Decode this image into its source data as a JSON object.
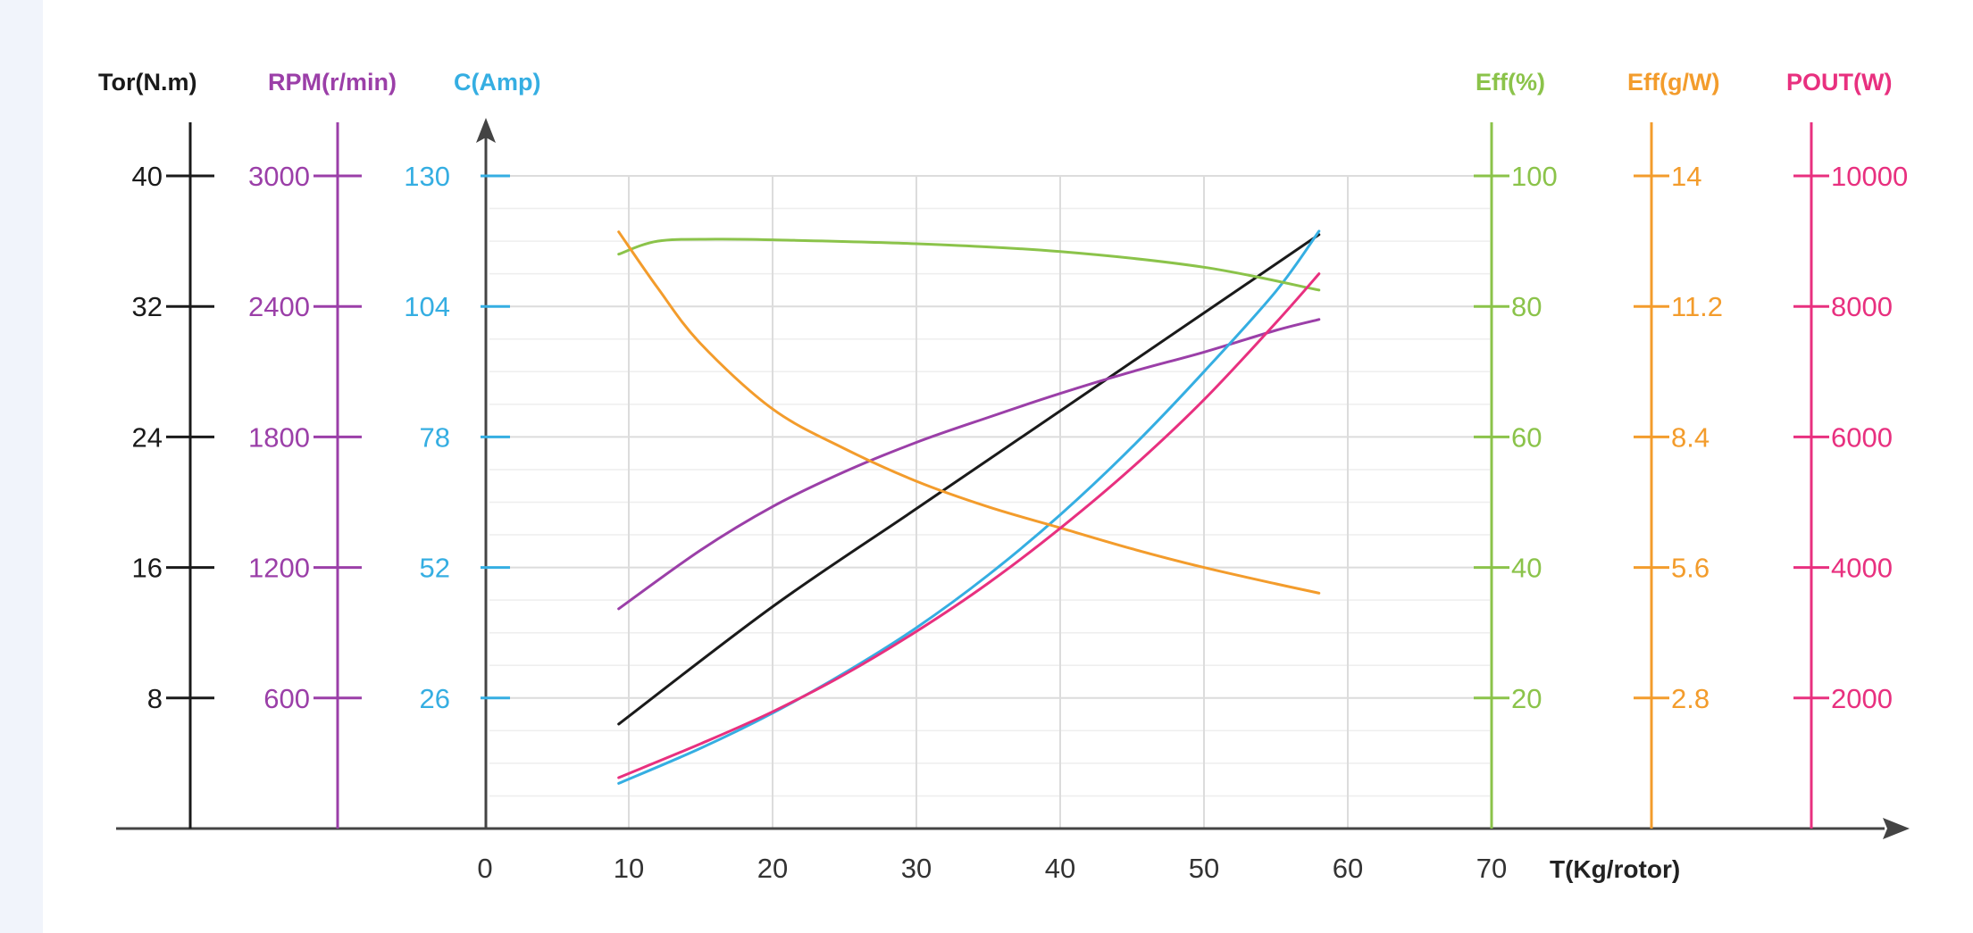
{
  "chart_data": {
    "type": "line",
    "x_axis": {
      "label": "T(Kg/rotor)",
      "ticks": [
        "0",
        "10",
        "20",
        "30",
        "40",
        "50",
        "60",
        "70"
      ],
      "range": [
        0,
        70
      ]
    },
    "y_axes": [
      {
        "id": "tor",
        "label": "Tor(N.m)",
        "color": "#1a1a1a",
        "range": [
          0,
          40
        ],
        "ticks": [
          "40",
          "32",
          "24",
          "16",
          "8"
        ],
        "tick_style": "cross-left"
      },
      {
        "id": "rpm",
        "label": "RPM(r/min)",
        "color": "#9b3fa8",
        "range": [
          0,
          3000
        ],
        "ticks": [
          "3000",
          "2400",
          "1800",
          "1200",
          "600"
        ],
        "tick_style": "cross-left"
      },
      {
        "id": "amp",
        "label": "C(Amp)",
        "color": "#35aee2",
        "range": [
          0,
          130
        ],
        "ticks": [
          "130",
          "104",
          "78",
          "52",
          "26"
        ],
        "tick_style": "right"
      },
      {
        "id": "eff_pct",
        "label": "Eff(%)",
        "color": "#8bc34a",
        "range": [
          0,
          100
        ],
        "ticks": [
          "100",
          "80",
          "60",
          "40",
          "20"
        ],
        "tick_style": "cross-right"
      },
      {
        "id": "eff_gw",
        "label": "Eff(g/W)",
        "color": "#f39c2c",
        "range": [
          0,
          14
        ],
        "ticks": [
          "14",
          "11.2",
          "8.4",
          "5.6",
          "2.8"
        ],
        "tick_style": "cross-right"
      },
      {
        "id": "pout",
        "label": "POUT(W)",
        "color": "#e8307f",
        "range": [
          0,
          10000
        ],
        "ticks": [
          "10000",
          "8000",
          "6000",
          "4000",
          "2000"
        ],
        "tick_style": "cross-right"
      }
    ],
    "grid": true,
    "series": [
      {
        "axis": "tor",
        "color": "#1a1a1a",
        "points": [
          [
            9.3,
            6.4
          ],
          [
            20,
            13.6
          ],
          [
            30,
            19.6
          ],
          [
            40,
            25.6
          ],
          [
            50,
            31.6
          ],
          [
            58,
            36.4
          ]
        ]
      },
      {
        "axis": "rpm",
        "color": "#9b3fa8",
        "points": [
          [
            9.3,
            1010
          ],
          [
            15,
            1280
          ],
          [
            20,
            1480
          ],
          [
            25,
            1640
          ],
          [
            30,
            1775
          ],
          [
            35,
            1890
          ],
          [
            40,
            2000
          ],
          [
            45,
            2100
          ],
          [
            50,
            2190
          ],
          [
            55,
            2290
          ],
          [
            58,
            2340
          ]
        ]
      },
      {
        "axis": "amp",
        "color": "#35aee2",
        "points": [
          [
            9.3,
            9
          ],
          [
            15,
            16
          ],
          [
            20,
            23
          ],
          [
            25,
            31
          ],
          [
            30,
            40
          ],
          [
            35,
            50.5
          ],
          [
            40,
            62.5
          ],
          [
            45,
            76
          ],
          [
            50,
            91
          ],
          [
            55,
            107
          ],
          [
            58,
            119
          ]
        ]
      },
      {
        "axis": "eff_pct",
        "color": "#8bc34a",
        "points": [
          [
            9.3,
            88
          ],
          [
            12,
            90
          ],
          [
            16,
            90.3
          ],
          [
            20,
            90.2
          ],
          [
            30,
            89.6
          ],
          [
            40,
            88.4
          ],
          [
            50,
            86
          ],
          [
            58,
            82.5
          ]
        ]
      },
      {
        "axis": "eff_gw",
        "color": "#f39c2c",
        "points": [
          [
            9.3,
            12.8
          ],
          [
            12,
            11.6
          ],
          [
            15,
            10.4
          ],
          [
            20,
            9.0
          ],
          [
            25,
            8.15
          ],
          [
            30,
            7.45
          ],
          [
            35,
            6.9
          ],
          [
            40,
            6.45
          ],
          [
            45,
            6.0
          ],
          [
            50,
            5.6
          ],
          [
            55,
            5.25
          ],
          [
            58,
            5.05
          ]
        ]
      },
      {
        "axis": "pout",
        "color": "#e8307f",
        "points": [
          [
            9.3,
            780
          ],
          [
            15,
            1300
          ],
          [
            20,
            1790
          ],
          [
            25,
            2360
          ],
          [
            30,
            3020
          ],
          [
            35,
            3760
          ],
          [
            40,
            4600
          ],
          [
            45,
            5530
          ],
          [
            50,
            6570
          ],
          [
            55,
            7750
          ],
          [
            58,
            8500
          ]
        ]
      }
    ]
  }
}
